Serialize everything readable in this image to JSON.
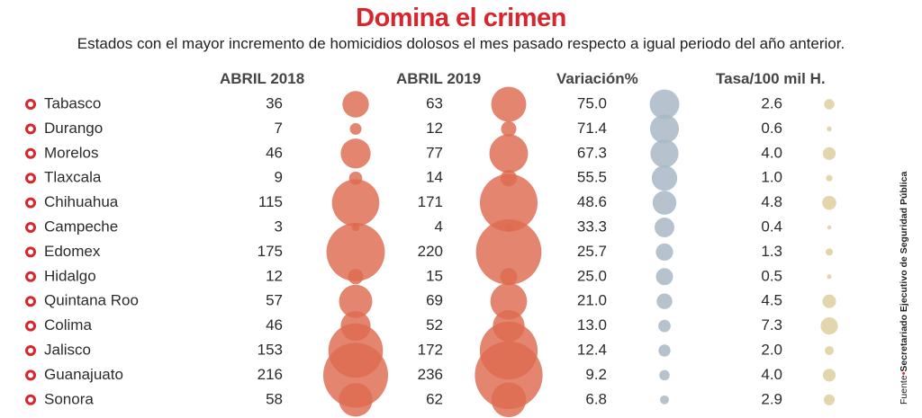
{
  "title": "Domina el crimen",
  "subtitle": "Estados con el mayor incremento de homicidios dolosos el mes pasado respecto a igual periodo del año anterior.",
  "source": {
    "label": "Fuente",
    "text": "Secretariado Ejecutivo de Seguridad Pública"
  },
  "colors": {
    "accent": "#d7262d",
    "bubble_counts": "#de6a4f",
    "bubble_variation": "#a9b8c6",
    "bubble_rate": "#e3d4a8",
    "text": "#2b2b2b"
  },
  "chart_data": {
    "type": "table",
    "columns": [
      "ABRIL 2018",
      "ABRIL 2019",
      "Variación%",
      "Tasa/100 mil H."
    ],
    "rows": [
      {
        "state": "Tabasco",
        "abril_2018": 36,
        "abril_2019": 63,
        "variacion": "75.0",
        "tasa": "2.6"
      },
      {
        "state": "Durango",
        "abril_2018": 7,
        "abril_2019": 12,
        "variacion": "71.4",
        "tasa": "0.6"
      },
      {
        "state": "Morelos",
        "abril_2018": 46,
        "abril_2019": 77,
        "variacion": "67.3",
        "tasa": "4.0"
      },
      {
        "state": "Tlaxcala",
        "abril_2018": 9,
        "abril_2019": 14,
        "variacion": "55.5",
        "tasa": "1.0"
      },
      {
        "state": "Chihuahua",
        "abril_2018": 115,
        "abril_2019": 171,
        "variacion": "48.6",
        "tasa": "4.8"
      },
      {
        "state": "Campeche",
        "abril_2018": 3,
        "abril_2019": 4,
        "variacion": "33.3",
        "tasa": "0.4"
      },
      {
        "state": "Edomex",
        "abril_2018": 175,
        "abril_2019": 220,
        "variacion": "25.7",
        "tasa": "1.3"
      },
      {
        "state": "Hidalgo",
        "abril_2018": 12,
        "abril_2019": 15,
        "variacion": "25.0",
        "tasa": "0.5"
      },
      {
        "state": "Quintana Roo",
        "abril_2018": 57,
        "abril_2019": 69,
        "variacion": "21.0",
        "tasa": "4.5"
      },
      {
        "state": "Colima",
        "abril_2018": 46,
        "abril_2019": 52,
        "variacion": "13.0",
        "tasa": "7.3"
      },
      {
        "state": "Jalisco",
        "abril_2018": 153,
        "abril_2019": 172,
        "variacion": "12.4",
        "tasa": "2.0"
      },
      {
        "state": "Guanajuato",
        "abril_2018": 216,
        "abril_2019": 236,
        "variacion": "9.2",
        "tasa": "4.0"
      },
      {
        "state": "Sonora",
        "abril_2018": 58,
        "abril_2019": 62,
        "variacion": "6.8",
        "tasa": "2.9"
      }
    ]
  }
}
